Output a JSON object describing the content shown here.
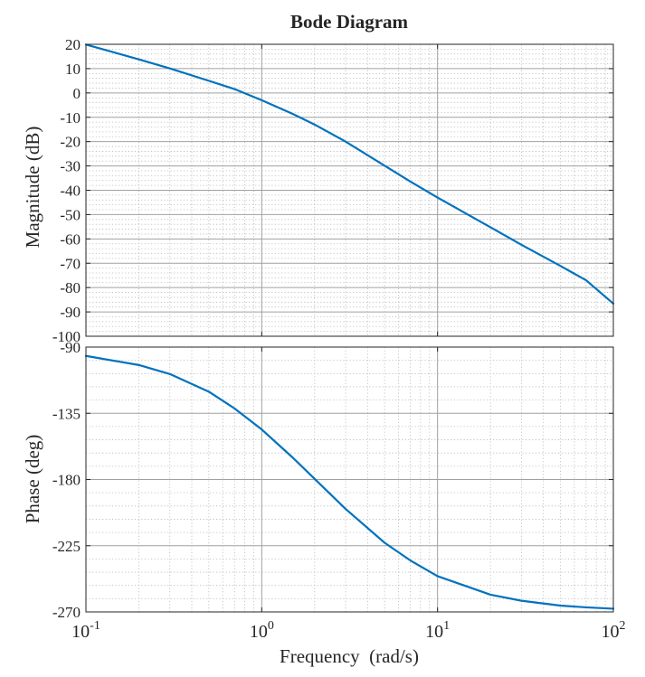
{
  "title": "Bode Diagram",
  "xlabel": "Frequency  (rad/s)",
  "colors": {
    "line": "#0072bd",
    "axes": "#262626",
    "major_grid": "#a0a0a0",
    "minor_grid": "#b8b8b8",
    "background": "#ffffff"
  },
  "chart_data": [
    {
      "type": "line",
      "title": "Bode Diagram",
      "ylabel": "Magnitude (dB)",
      "xscale": "log",
      "xlim": [
        0.1,
        100
      ],
      "ylim": [
        -100,
        20
      ],
      "yticks": [
        20,
        10,
        0,
        -10,
        -20,
        -30,
        -40,
        -50,
        -60,
        -70,
        -80,
        -90,
        -100
      ],
      "grid": "on (major and minor)",
      "series": [
        {
          "x": [
            0.1,
            0.2,
            0.3,
            0.5,
            0.7,
            1,
            1.5,
            2,
            3,
            5,
            7,
            10,
            20,
            30,
            50,
            70,
            100
          ],
          "y": [
            19.9,
            13.8,
            10.1,
            5.0,
            1.6,
            -3.0,
            -8.6,
            -13.0,
            -20.0,
            -29.9,
            -36.4,
            -43.0,
            -55.2,
            -62.4,
            -71.1,
            -77.0,
            -86.6
          ]
        }
      ]
    },
    {
      "type": "line",
      "ylabel": "Phase (deg)",
      "xlabel": "Frequency  (rad/s)",
      "xscale": "log",
      "xlim": [
        0.1,
        100
      ],
      "ylim": [
        -270,
        -90
      ],
      "yticks": [
        -90,
        -135,
        -180,
        -225,
        -270
      ],
      "xticks": [
        "10-1",
        "100",
        "101",
        "102"
      ],
      "grid": "on (major and minor)",
      "series": [
        {
          "x": [
            0.1,
            0.2,
            0.3,
            0.5,
            0.7,
            1,
            1.5,
            2,
            3,
            5,
            7,
            10,
            20,
            30,
            50,
            70,
            100
          ],
          "y": [
            -96.0,
            -102.2,
            -108.3,
            -120.3,
            -131.7,
            -146.0,
            -165.1,
            -179.6,
            -200.0,
            -223.0,
            -235.0,
            -245.7,
            -258.3,
            -262.4,
            -265.7,
            -266.9,
            -267.8
          ]
        }
      ]
    }
  ]
}
